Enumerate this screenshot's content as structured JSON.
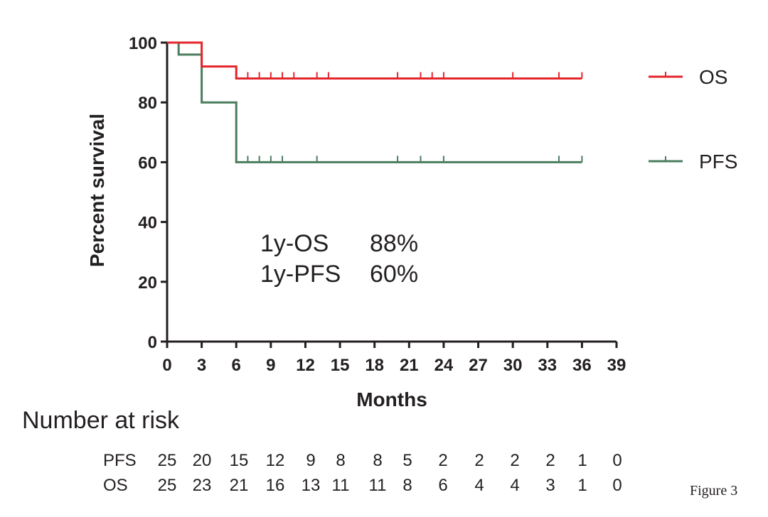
{
  "chart_data": {
    "type": "line",
    "subtype": "kaplan-meier step",
    "xlabel": "Months",
    "ylabel": "Percent survival",
    "xlim": [
      0,
      39
    ],
    "ylim": [
      0,
      100
    ],
    "x_ticks": [
      0,
      3,
      6,
      9,
      12,
      15,
      18,
      21,
      24,
      27,
      30,
      33,
      36,
      39
    ],
    "y_ticks": [
      0,
      20,
      40,
      60,
      80,
      100
    ],
    "grid": false,
    "legend_position": "right",
    "series": [
      {
        "name": "OS",
        "color": "#e3262c",
        "steps": [
          [
            0,
            100
          ],
          [
            3,
            92
          ],
          [
            6,
            88
          ],
          [
            36,
            88
          ]
        ],
        "censored": [
          7,
          8,
          9,
          10,
          11,
          13,
          14,
          20,
          22,
          23,
          24,
          30,
          34,
          36
        ]
      },
      {
        "name": "PFS",
        "color": "#4a7d5e",
        "steps": [
          [
            0,
            100
          ],
          [
            1,
            96
          ],
          [
            3,
            80
          ],
          [
            6,
            60
          ],
          [
            36,
            60
          ]
        ],
        "censored": [
          1,
          7,
          8,
          9,
          10,
          13,
          20,
          22,
          24,
          34,
          36
        ]
      }
    ],
    "annotations": [
      {
        "label": "1y-OS",
        "value": "88%"
      },
      {
        "label": "1y-PFS",
        "value": "60%"
      }
    ]
  },
  "risk_table": {
    "title": "Number at risk",
    "rows": [
      {
        "label": "PFS",
        "values": [
          "25",
          "20",
          "15",
          "12",
          "9",
          "8",
          "8",
          "5",
          "2",
          "2",
          "2",
          "2",
          "1",
          "0"
        ]
      },
      {
        "label": "OS",
        "values": [
          "25",
          "23",
          "21",
          "16",
          "13",
          "11",
          "11",
          "8",
          "6",
          "4",
          "4",
          "3",
          "1",
          "0"
        ]
      }
    ]
  },
  "caption": "Figure 3"
}
